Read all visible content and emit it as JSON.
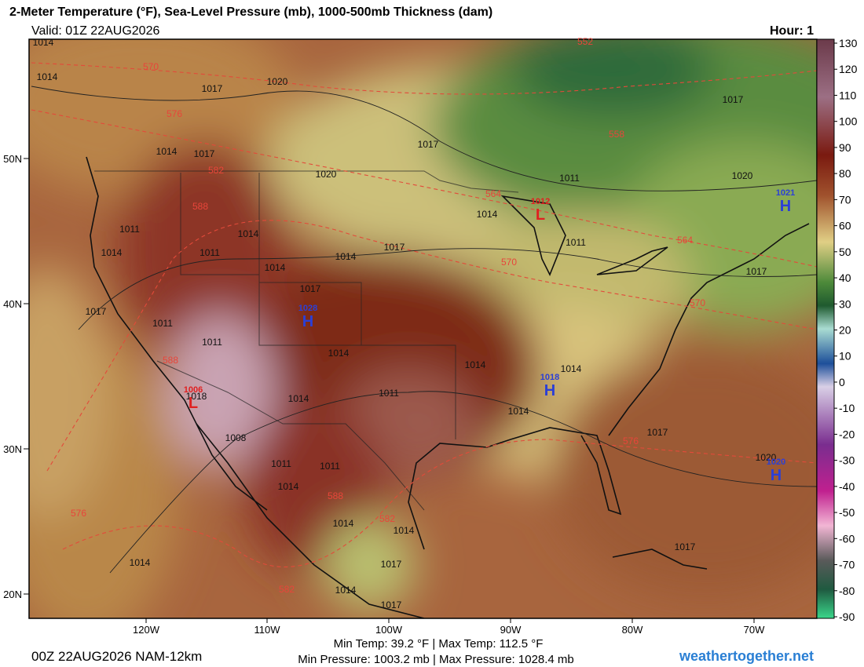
{
  "header": {
    "title": "2-Meter Temperature (°F), Sea-Level Pressure (mb), 1000-500mb Thickness (dam)",
    "valid": "Valid: 01Z 22AUG2026",
    "hour": "Hour: 1"
  },
  "map": {
    "lat_labels": [
      "50N",
      "40N",
      "30N",
      "20N"
    ],
    "lon_labels": [
      "120W",
      "110W",
      "100W",
      "90W",
      "80W",
      "70W"
    ],
    "pressure_labels": [
      "1014",
      "1014",
      "1017",
      "1020",
      "1014",
      "1017",
      "1020",
      "1017",
      "1011",
      "1017",
      "1020",
      "1014",
      "1011",
      "1014",
      "1011",
      "1014",
      "1014",
      "1017",
      "1014",
      "1017",
      "1011",
      "1017",
      "1017",
      "1011",
      "1011",
      "1014",
      "1014",
      "1014",
      "1011",
      "1014",
      "1014",
      "1017",
      "1008",
      "1011",
      "1011",
      "1014",
      "1014",
      "1014",
      "1017",
      "1014",
      "1017",
      "1014",
      "1017",
      "1020",
      "1018"
    ],
    "thickness_labels": [
      "570",
      "576",
      "582",
      "588",
      "564",
      "570",
      "552",
      "558",
      "564",
      "570",
      "576",
      "582",
      "576",
      "588",
      "582",
      "588"
    ],
    "centers": [
      {
        "letter": "H",
        "pressure": "1028"
      },
      {
        "letter": "H",
        "pressure": "1021"
      },
      {
        "letter": "H",
        "pressure": "1018"
      },
      {
        "letter": "H",
        "pressure": "1020"
      },
      {
        "letter": "L",
        "pressure": "1012"
      },
      {
        "letter": "L",
        "pressure": "1006"
      }
    ]
  },
  "colorbar": {
    "ticks": [
      130,
      120,
      110,
      100,
      90,
      80,
      70,
      60,
      50,
      40,
      30,
      20,
      10,
      0,
      -10,
      -20,
      -30,
      -40,
      -50,
      -60,
      -70,
      -80,
      -90
    ]
  },
  "footer": {
    "run": "00Z 22AUG2026 NAM-12km",
    "temps": "Min Temp:  39.2 °F | Max Temp: 112.5 °F",
    "pressures": "Min Pressure: 1003.2 mb | Max Pressure: 1028.4 mb",
    "site": "weathertogether.net"
  }
}
